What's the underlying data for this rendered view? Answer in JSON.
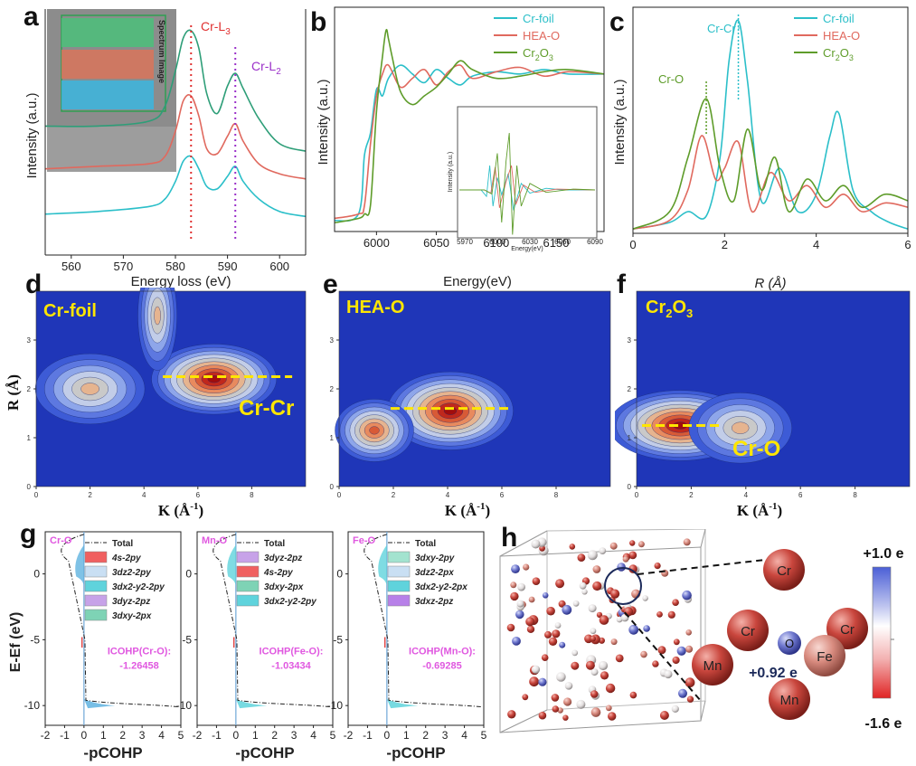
{
  "panels": [
    "a",
    "b",
    "c",
    "d",
    "e",
    "f",
    "g",
    "h"
  ],
  "chart_data": [
    {
      "id": "a",
      "type": "line",
      "xlabel": "Energy loss (eV)",
      "ylabel": "Intensity (a.u.)",
      "xlim": [
        555,
        605
      ],
      "xticks": [
        "560",
        "570",
        "580",
        "590",
        "600"
      ],
      "inset_label": "Spectrum Image",
      "annotations": [
        "Cr-L3",
        "Cr-L2"
      ],
      "marker_lines_x": [
        583,
        591.5
      ],
      "series": [
        {
          "color": "#2e9e78",
          "x": [
            555,
            565,
            575,
            578,
            580,
            581.5,
            583,
            584.5,
            586,
            588,
            590,
            591.5,
            593,
            596,
            600,
            605
          ],
          "y": [
            0.62,
            0.62,
            0.64,
            0.7,
            0.84,
            0.97,
            1.0,
            0.93,
            0.75,
            0.67,
            0.78,
            0.83,
            0.77,
            0.65,
            0.55,
            0.52
          ]
        },
        {
          "color": "#e0695e",
          "x": [
            555,
            565,
            575,
            578,
            580,
            581.5,
            583,
            584.5,
            586,
            588,
            590,
            591.5,
            593,
            596,
            600,
            605
          ],
          "y": [
            0.45,
            0.46,
            0.47,
            0.5,
            0.6,
            0.72,
            0.74,
            0.66,
            0.53,
            0.51,
            0.58,
            0.63,
            0.56,
            0.47,
            0.43,
            0.41
          ]
        },
        {
          "color": "#2bbfc9",
          "x": [
            555,
            565,
            575,
            578,
            580,
            581.5,
            583,
            584.5,
            586,
            588,
            590,
            591.5,
            593,
            596,
            600,
            605
          ],
          "y": [
            0.27,
            0.28,
            0.3,
            0.33,
            0.4,
            0.48,
            0.5,
            0.45,
            0.38,
            0.37,
            0.42,
            0.46,
            0.4,
            0.33,
            0.28,
            0.26
          ]
        }
      ]
    },
    {
      "id": "b",
      "type": "line",
      "xlabel": "Energy(eV)",
      "ylabel": "Intensity (a.u.)",
      "xlim": [
        5965,
        6190
      ],
      "xticks": [
        "6000",
        "6050",
        "6100",
        "6150"
      ],
      "legend": [
        "Cr-foil",
        "HEA-O",
        "Cr2O3"
      ],
      "inset": {
        "ylabel": "Intensity (a.u.)",
        "xlabel": "Energy(eV)",
        "xticks": [
          "5970",
          "6000",
          "6030",
          "6060",
          "6090"
        ]
      },
      "series": [
        {
          "name": "Cr-foil",
          "color": "#2bbfc9",
          "x": [
            5965,
            5985,
            5990,
            5995,
            6000,
            6005,
            6010,
            6020,
            6030,
            6040,
            6050,
            6060,
            6070,
            6080,
            6100,
            6120,
            6140,
            6160,
            6190
          ],
          "y": [
            0.05,
            0.08,
            0.35,
            0.45,
            0.65,
            0.62,
            0.7,
            0.76,
            0.72,
            0.68,
            0.74,
            0.7,
            0.67,
            0.71,
            0.73,
            0.72,
            0.74,
            0.72,
            0.72
          ]
        },
        {
          "name": "HEA-O",
          "color": "#e0695e",
          "x": [
            5965,
            5985,
            5990,
            5995,
            6000,
            6005,
            6010,
            6020,
            6030,
            6040,
            6050,
            6060,
            6070,
            6080,
            6100,
            6120,
            6140,
            6160,
            6190
          ],
          "y": [
            0.06,
            0.08,
            0.12,
            0.4,
            0.62,
            0.72,
            0.76,
            0.66,
            0.7,
            0.74,
            0.67,
            0.73,
            0.76,
            0.7,
            0.73,
            0.75,
            0.71,
            0.73,
            0.72
          ]
        },
        {
          "name": "Cr2O3",
          "color": "#5e9c2a",
          "x": [
            5965,
            5985,
            5990,
            5995,
            6000,
            6005,
            6008,
            6010,
            6013,
            6020,
            6030,
            6040,
            6050,
            6060,
            6070,
            6080,
            6100,
            6120,
            6140,
            6160,
            6190
          ],
          "y": [
            0.04,
            0.06,
            0.08,
            0.12,
            0.55,
            0.8,
            0.92,
            0.88,
            0.8,
            0.64,
            0.58,
            0.62,
            0.66,
            0.72,
            0.78,
            0.74,
            0.7,
            0.71,
            0.73,
            0.74,
            0.72
          ]
        }
      ]
    },
    {
      "id": "c",
      "type": "line",
      "xlabel": "R (Å)",
      "ylabel": "Intensity (a.u.)",
      "xlim": [
        0,
        6
      ],
      "xticks": [
        "0",
        "2",
        "4",
        "6"
      ],
      "legend": [
        "Cr-foil",
        "HEA-O",
        "Cr2O3"
      ],
      "annotations": [
        "Cr-Cr",
        "Cr-O"
      ],
      "series": [
        {
          "name": "Cr-foil",
          "color": "#2bbfc9",
          "x": [
            0,
            0.8,
            1.2,
            1.6,
            1.9,
            2.1,
            2.3,
            2.5,
            2.8,
            3.2,
            3.6,
            4.0,
            4.3,
            4.5,
            4.8,
            5.2,
            5.6,
            6.0
          ],
          "y": [
            0.02,
            0.05,
            0.1,
            0.08,
            0.35,
            0.8,
            0.98,
            0.7,
            0.15,
            0.3,
            0.1,
            0.18,
            0.45,
            0.55,
            0.2,
            0.1,
            0.05,
            0.02
          ]
        },
        {
          "name": "HEA-O",
          "color": "#e0695e",
          "x": [
            0,
            0.8,
            1.2,
            1.5,
            1.8,
            2.0,
            2.3,
            2.6,
            3.0,
            3.4,
            3.8,
            4.2,
            4.6,
            5.0,
            5.5,
            6.0
          ],
          "y": [
            0.02,
            0.06,
            0.2,
            0.45,
            0.25,
            0.3,
            0.42,
            0.1,
            0.28,
            0.15,
            0.22,
            0.12,
            0.18,
            0.1,
            0.14,
            0.12
          ]
        },
        {
          "name": "Cr2O3",
          "color": "#5e9c2a",
          "x": [
            0,
            0.8,
            1.2,
            1.6,
            1.9,
            2.2,
            2.5,
            2.8,
            3.1,
            3.4,
            3.8,
            4.2,
            4.6,
            5.0,
            5.5,
            6.0
          ],
          "y": [
            0.02,
            0.1,
            0.35,
            0.62,
            0.3,
            0.15,
            0.48,
            0.2,
            0.35,
            0.1,
            0.25,
            0.15,
            0.22,
            0.12,
            0.18,
            0.15
          ]
        }
      ]
    },
    {
      "id": "d",
      "type": "heatmap",
      "title": "Cr-foil",
      "xlabel": "K (Å-1)",
      "ylabel": "R (Å)",
      "xlim": [
        0,
        10
      ],
      "ylim": [
        0,
        4
      ],
      "xticks": [
        "0",
        "2",
        "4",
        "6",
        "8"
      ],
      "yticks": [
        "0",
        "1",
        "2",
        "3"
      ],
      "annotation": "Cr-Cr",
      "peaks": [
        {
          "k": 6.6,
          "r": 2.2,
          "amp": 1.0,
          "sk": 1.6,
          "sr": 0.45
        },
        {
          "k": 2.0,
          "r": 2.0,
          "amp": 0.55,
          "sk": 1.4,
          "sr": 0.45
        },
        {
          "k": 4.5,
          "r": 3.5,
          "amp": 0.55,
          "sk": 0.5,
          "sr": 0.7
        }
      ],
      "dash_r": 2.25
    },
    {
      "id": "e",
      "type": "heatmap",
      "title": "HEA-O",
      "xlabel": "K (Å-1)",
      "xlim": [
        0,
        10
      ],
      "ylim": [
        0,
        4
      ],
      "xticks": [
        "0",
        "2",
        "4",
        "6",
        "8"
      ],
      "yticks": [
        "0",
        "1",
        "2",
        "3"
      ],
      "peaks": [
        {
          "k": 4.1,
          "r": 1.55,
          "amp": 0.95,
          "sk": 1.6,
          "sr": 0.5
        },
        {
          "k": 1.3,
          "r": 1.15,
          "amp": 0.75,
          "sk": 1.0,
          "sr": 0.4
        }
      ],
      "dash_r": 1.6
    },
    {
      "id": "f",
      "type": "heatmap",
      "title": "Cr2O3",
      "xlabel": "K (Å-1)",
      "xlim": [
        0,
        10
      ],
      "ylim": [
        0,
        4
      ],
      "xticks": [
        "0",
        "2",
        "4",
        "6",
        "8"
      ],
      "yticks": [
        "0",
        "1",
        "2",
        "3"
      ],
      "annotation": "Cr-O",
      "peaks": [
        {
          "k": 1.6,
          "r": 1.25,
          "amp": 1.0,
          "sk": 1.8,
          "sr": 0.45
        },
        {
          "k": 3.8,
          "r": 1.2,
          "amp": 0.6,
          "sk": 1.3,
          "sr": 0.45
        }
      ],
      "dash_r": 1.25
    },
    {
      "id": "g",
      "type": "area",
      "ylabel": "E-Ef (eV)",
      "xlabel": "-pCOHP",
      "xticks": [
        "-2",
        "-1",
        "0",
        "1",
        "2",
        "3",
        "4",
        "5"
      ],
      "yticks": [
        "0",
        "-5",
        "-10"
      ],
      "subpanels": [
        {
          "tag": "Cr-O",
          "legend": [
            "Total",
            "4s-2py",
            "3dz2-2py",
            "3dx2-y2-2py",
            "3dyz-2pz",
            "3dxy-2px"
          ],
          "colors": [
            "#333333",
            "#f06060",
            "#c9dff3",
            "#5fd3dc",
            "#c7a2e8",
            "#7ed3b5"
          ],
          "icohp_label": "ICOHP(Cr-O):",
          "icohp_value": "-1.26458"
        },
        {
          "tag": "Mn-O",
          "legend": [
            "Total",
            "3dyz-2pz",
            "4s-2py",
            "3dxy-2px",
            "3dx2-y2-2py"
          ],
          "colors": [
            "#333333",
            "#c7a2e8",
            "#f06060",
            "#7ed3b5",
            "#5fd3dc"
          ],
          "icohp_label": "ICOHP(Fe-O):",
          "icohp_value": "-1.03434"
        },
        {
          "tag": "Fe-O",
          "legend": [
            "Total",
            "3dxy-2py",
            "3dz2-2px",
            "3dx2-y2-2px",
            "3dxz-2pz"
          ],
          "colors": [
            "#333333",
            "#a3e3cf",
            "#c9dff3",
            "#5fd3dc",
            "#b780e8"
          ],
          "icohp_label": "ICOHP(Mn-O):",
          "icohp_value": "-0.69285"
        }
      ]
    }
  ],
  "panel_h": {
    "atoms": [
      "Cr",
      "Cr",
      "O",
      "Cr",
      "Mn",
      "Fe",
      "Mn"
    ],
    "charge_label": "+0.92 e",
    "colorbar_max": "+1.0 e",
    "colorbar_min": "-1.6 e"
  },
  "colors": {
    "cyan": "#2bbfc9",
    "red": "#e0695e",
    "green": "#5e9c2a",
    "teal": "#2e9e78",
    "annot_red": "#e03030",
    "annot_purple": "#9b30c9",
    "annot_yellow": "#ffe600",
    "annot_pink": "#e058e0"
  }
}
